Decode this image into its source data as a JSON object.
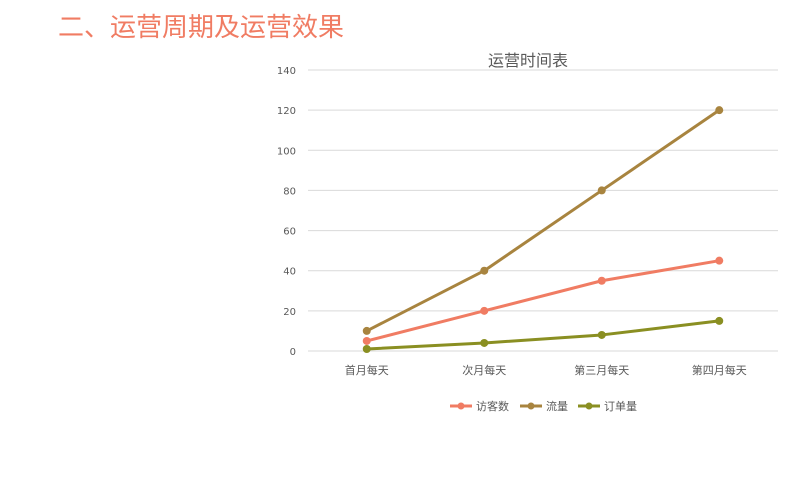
{
  "page": {
    "heading": "二、运营周期及运营效果"
  },
  "colors": {
    "heading": "#f07c63",
    "grid": "#d9d9d9",
    "axis_text": "#595959",
    "title_text": "#595959"
  },
  "chart_data": {
    "type": "line",
    "title": "运营时间表",
    "xlabel": "",
    "ylabel": "",
    "categories": [
      "首月每天",
      "次月每天",
      "第三月每天",
      "第四月每天"
    ],
    "ylim": [
      0,
      140
    ],
    "yticks": [
      0,
      20,
      40,
      60,
      80,
      100,
      120,
      140
    ],
    "grid": true,
    "legend_position": "bottom",
    "series": [
      {
        "name": "访客数",
        "values": [
          5,
          20,
          35,
          45
        ],
        "color": "#f07c63"
      },
      {
        "name": "流量",
        "values": [
          10,
          40,
          80,
          120
        ],
        "color": "#a8843f"
      },
      {
        "name": "订单量",
        "values": [
          1,
          4,
          8,
          15
        ],
        "color": "#8a8f22"
      }
    ]
  }
}
